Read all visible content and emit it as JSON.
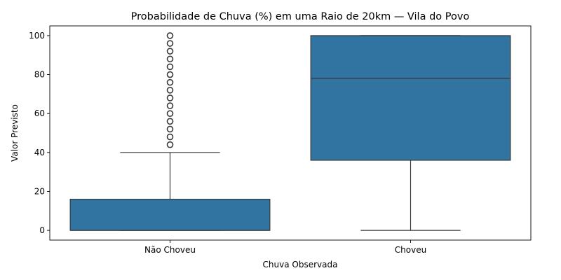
{
  "chart_data": {
    "type": "boxplot",
    "title": "Probabilidade de Chuva (%) em uma Raio de 20km — Vila do Povo",
    "xlabel": "Chuva Observada",
    "ylabel": "Valor Previsto",
    "ylim": [
      -5,
      105
    ],
    "yticks": [
      0,
      20,
      40,
      60,
      80,
      100
    ],
    "grid": false,
    "box_color": "#3274a1",
    "line_color": "#3a3a3a",
    "categories": [
      "Não Choveu",
      "Choveu"
    ],
    "boxes": [
      {
        "category": "Não Choveu",
        "whisker_low": 0,
        "q1": 0,
        "median": 0,
        "q3": 16,
        "whisker_high": 40,
        "outliers": [
          44,
          48,
          52,
          56,
          60,
          64,
          68,
          72,
          76,
          80,
          84,
          88,
          92,
          96,
          100
        ]
      },
      {
        "category": "Choveu",
        "whisker_low": 0,
        "q1": 36,
        "median": 78,
        "q3": 100,
        "whisker_high": 100,
        "outliers": []
      }
    ]
  }
}
